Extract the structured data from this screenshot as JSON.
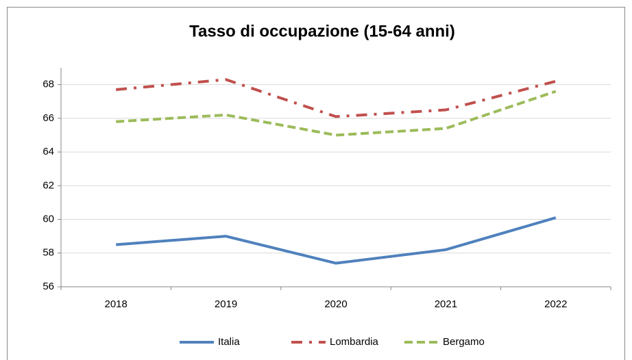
{
  "chart_data": {
    "type": "line",
    "title": "Tasso di occupazione (15-64 anni)",
    "categories": [
      "2018",
      "2019",
      "2020",
      "2021",
      "2022"
    ],
    "series": [
      {
        "name": "Italia",
        "color": "#4f81bd",
        "values": [
          58.5,
          59.0,
          57.4,
          58.2,
          60.1
        ]
      },
      {
        "name": "Lombardia",
        "color": "#c0504d",
        "values": [
          67.7,
          68.3,
          66.1,
          66.5,
          68.2
        ]
      },
      {
        "name": "Bergamo",
        "color": "#9bbb59",
        "values": [
          65.8,
          66.2,
          65.0,
          65.4,
          67.6
        ]
      }
    ],
    "ylim": [
      56,
      69
    ],
    "yticks": [
      56,
      58,
      60,
      62,
      64,
      66,
      68
    ],
    "grid": true,
    "legend": "bottom"
  }
}
